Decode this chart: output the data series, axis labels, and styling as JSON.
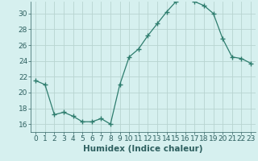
{
  "x": [
    0,
    1,
    2,
    3,
    4,
    5,
    6,
    7,
    8,
    9,
    10,
    11,
    12,
    13,
    14,
    15,
    16,
    17,
    18,
    19,
    20,
    21,
    22,
    23
  ],
  "y": [
    21.5,
    21.0,
    17.2,
    17.5,
    17.0,
    16.3,
    16.3,
    16.7,
    16.0,
    21.0,
    24.5,
    25.5,
    27.2,
    28.7,
    30.2,
    31.5,
    32.0,
    31.5,
    31.0,
    30.0,
    26.8,
    24.5,
    24.3,
    23.7
  ],
  "line_color": "#2e7d6e",
  "marker": "+",
  "marker_size": 4,
  "bg_color": "#d6f0ef",
  "grid_color": "#b8d4d0",
  "xlabel": "Humidex (Indice chaleur)",
  "xlim": [
    -0.5,
    23.5
  ],
  "ylim": [
    15.0,
    31.5
  ],
  "yticks": [
    16,
    18,
    20,
    22,
    24,
    26,
    28,
    30
  ],
  "xticks": [
    0,
    1,
    2,
    3,
    4,
    5,
    6,
    7,
    8,
    9,
    10,
    11,
    12,
    13,
    14,
    15,
    16,
    17,
    18,
    19,
    20,
    21,
    22,
    23
  ],
  "font_color": "#2e6060",
  "tick_fontsize": 6.5,
  "xlabel_fontsize": 7.5,
  "linewidth": 0.9,
  "markeredgewidth": 1.0
}
